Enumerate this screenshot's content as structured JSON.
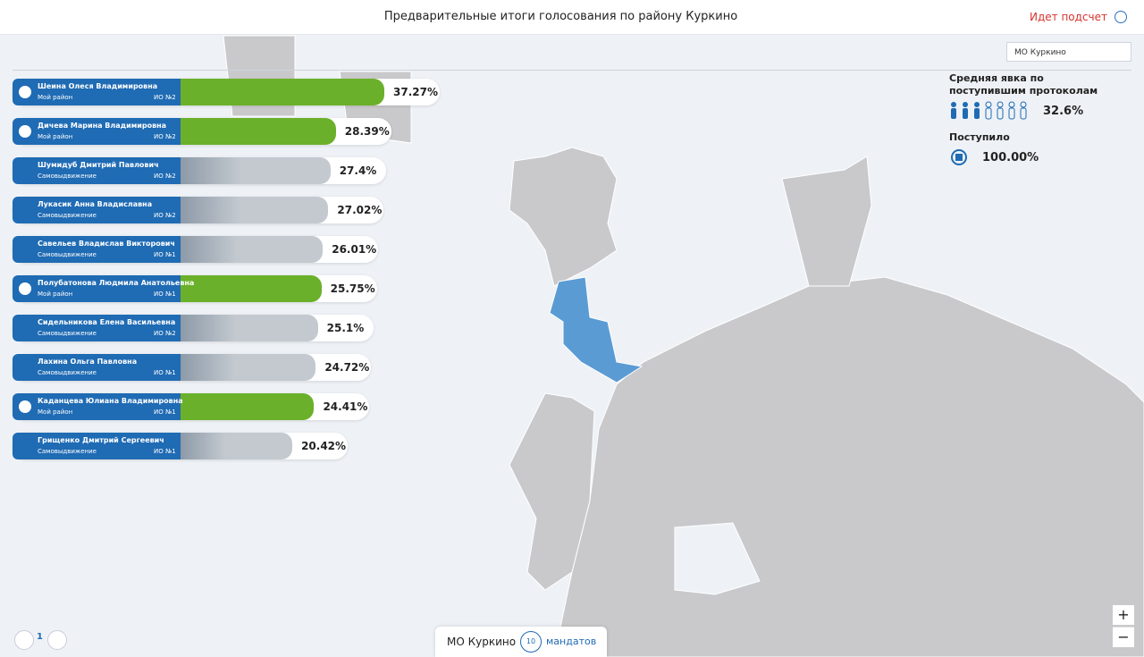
{
  "header": {
    "title": "Предварительные итоги голосования по району Куркино",
    "status": "Идет подсчет"
  },
  "district_select": "МО Куркино",
  "turnout": {
    "title": "Средняя явка по поступившим протоколам",
    "value_label": "32.6%",
    "received_title": "Поступило",
    "received_label": "100.00%"
  },
  "candidates": [
    {
      "name": "Шеина Олеся Владимировна",
      "party": "Мой район",
      "district": "ИО №2",
      "value": 37.27,
      "value_label": "37.27%",
      "color": "#6bb02a"
    },
    {
      "name": "Дичева Марина Владимировна",
      "party": "Мой район",
      "district": "ИО №2",
      "value": 28.39,
      "value_label": "28.39%",
      "color": "#6bb02a"
    },
    {
      "name": "Шумидуб Дмитрий Павлович",
      "party": "Самовыдвижение",
      "district": "ИО №2",
      "value": 27.4,
      "value_label": "27.4%",
      "color": "#c3c9cf"
    },
    {
      "name": "Лукасик Анна Владиславна",
      "party": "Самовыдвижение",
      "district": "ИО №2",
      "value": 27.02,
      "value_label": "27.02%",
      "color": "#c3c9cf"
    },
    {
      "name": "Савельев Владислав Викторович",
      "party": "Самовыдвижение",
      "district": "ИО №1",
      "value": 26.01,
      "value_label": "26.01%",
      "color": "#c3c9cf"
    },
    {
      "name": "Полубатонова Людмила Анатольевна",
      "party": "Мой район",
      "district": "ИО №1",
      "value": 25.75,
      "value_label": "25.75%",
      "color": "#6bb02a"
    },
    {
      "name": "Сидельникова Елена Васильевна",
      "party": "Самовыдвижение",
      "district": "ИО №2",
      "value": 25.1,
      "value_label": "25.1%",
      "color": "#c3c9cf"
    },
    {
      "name": "Лахина Ольга Павловна",
      "party": "Самовыдвижение",
      "district": "ИО №1",
      "value": 24.72,
      "value_label": "24.72%",
      "color": "#c3c9cf"
    },
    {
      "name": "Каданцева Юлиана Владимировна",
      "party": "Мой район",
      "district": "ИО №1",
      "value": 24.41,
      "value_label": "24.41%",
      "color": "#6bb02a"
    },
    {
      "name": "Грищенко Дмитрий Сергеевич",
      "party": "Самовыдвижение",
      "district": "ИО №1",
      "value": 20.42,
      "value_label": "20.42%",
      "color": "#c3c9cf"
    }
  ],
  "pagination": {
    "page": "1"
  },
  "footer": {
    "district": "МО Куркино",
    "mandates": "10",
    "mandates_label": "мандатов"
  },
  "zoom": {
    "in": "+",
    "out": "−"
  }
}
